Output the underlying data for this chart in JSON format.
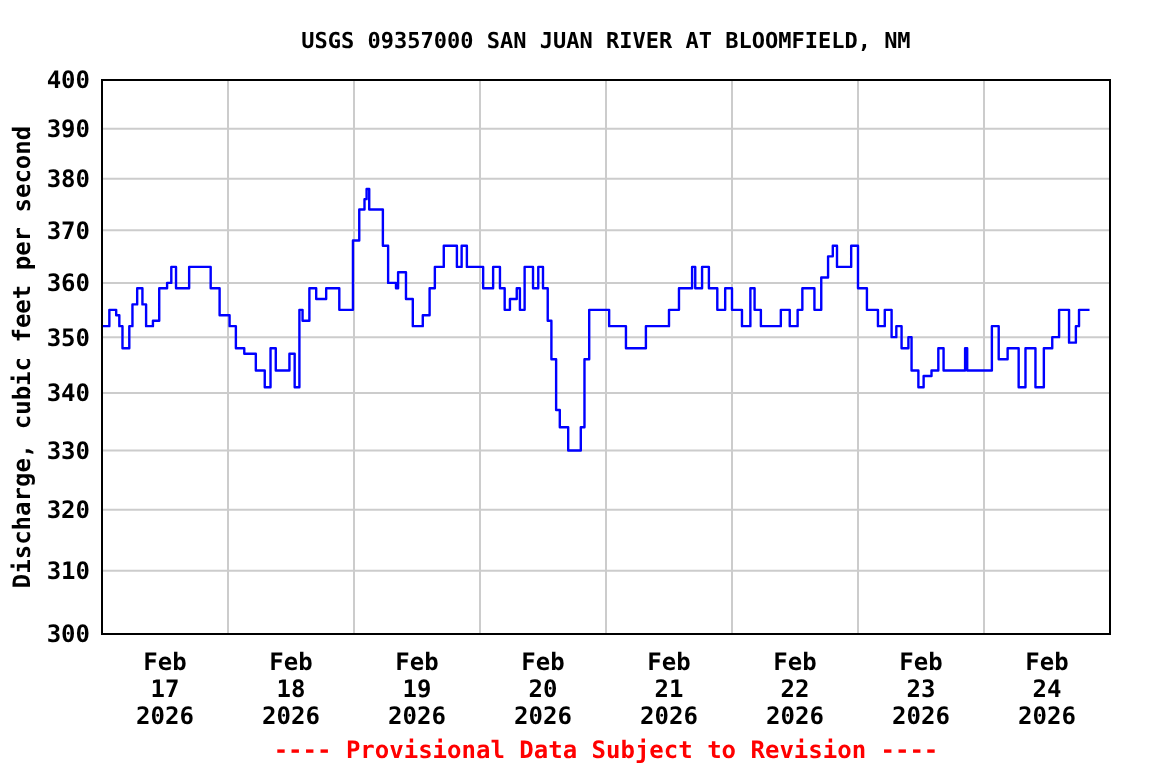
{
  "chart_data": {
    "type": "step",
    "title": "USGS 09357000 SAN JUAN RIVER AT BLOOMFIELD, NM",
    "ylabel": "Discharge, cubic feet per second",
    "annotations": [
      "---- Provisional Data Subject to Revision ----"
    ],
    "log": "y",
    "grid": true,
    "line_style": "solid",
    "marker": "none",
    "xlim": [
      "2026-02-17T00:00",
      "2026-02-25T00:00"
    ],
    "xticks": [
      {
        "value": "2026-02-17T12:00",
        "label": "Feb\n17\n2026"
      },
      {
        "value": "2026-02-18T00:00",
        "label": null
      },
      {
        "value": "2026-02-18T12:00",
        "label": "Feb\n18\n2026"
      },
      {
        "value": "2026-02-19T00:00",
        "label": null
      },
      {
        "value": "2026-02-19T12:00",
        "label": "Feb\n19\n2026"
      },
      {
        "value": "2026-02-20T00:00",
        "label": null
      },
      {
        "value": "2026-02-20T12:00",
        "label": "Feb\n20\n2026"
      },
      {
        "value": "2026-02-21T00:00",
        "label": null
      },
      {
        "value": "2026-02-21T12:00",
        "label": "Feb\n21\n2026"
      },
      {
        "value": "2026-02-22T00:00",
        "label": null
      },
      {
        "value": "2026-02-22T12:00",
        "label": "Feb\n22\n2026"
      },
      {
        "value": "2026-02-23T00:00",
        "label": null
      },
      {
        "value": "2026-02-23T12:00",
        "label": "Feb\n23\n2026"
      },
      {
        "value": "2026-02-24T00:00",
        "label": null
      },
      {
        "value": "2026-02-24T12:00",
        "label": "Feb\n24\n2026"
      }
    ],
    "ylim": [
      300,
      400
    ],
    "yticks": [
      300,
      310,
      320,
      330,
      340,
      350,
      360,
      370,
      380,
      390,
      400
    ],
    "series": [
      {
        "color": "#0000ff",
        "x": [
          "2026-02-17T00:06",
          "2026-02-17T01:24",
          "2026-02-17T02:42",
          "2026-02-17T03:18",
          "2026-02-17T03:54",
          "2026-02-17T05:12",
          "2026-02-17T05:48",
          "2026-02-17T06:42",
          "2026-02-17T07:42",
          "2026-02-17T08:24",
          "2026-02-17T09:42",
          "2026-02-17T10:54",
          "2026-02-17T12:24",
          "2026-02-17T13:12",
          "2026-02-17T14:06",
          "2026-02-17T16:36",
          "2026-02-17T19:48",
          "2026-02-17T20:42",
          "2026-02-17T22:24",
          "2026-02-18T00:18",
          "2026-02-18T01:30",
          "2026-02-18T03:06",
          "2026-02-18T05:18",
          "2026-02-18T07:00",
          "2026-02-18T08:06",
          "2026-02-18T09:06",
          "2026-02-18T11:42",
          "2026-02-18T12:42",
          "2026-02-18T13:36",
          "2026-02-18T14:12",
          "2026-02-18T15:30",
          "2026-02-18T16:48",
          "2026-02-18T18:42",
          "2026-02-18T20:36",
          "2026-02-18T21:12",
          "2026-02-18T22:54",
          "2026-02-18T23:48",
          "2026-02-19T01:00",
          "2026-02-19T02:00",
          "2026-02-19T02:24",
          "2026-02-19T02:54",
          "2026-02-19T04:48",
          "2026-02-19T05:30",
          "2026-02-19T06:30",
          "2026-02-19T08:00",
          "2026-02-19T08:24",
          "2026-02-19T09:54",
          "2026-02-19T11:12",
          "2026-02-19T13:06",
          "2026-02-19T14:24",
          "2026-02-19T15:24",
          "2026-02-19T17:06",
          "2026-02-19T19:00",
          "2026-02-19T19:36",
          "2026-02-19T20:30",
          "2026-02-19T21:30",
          "2026-02-20T00:36",
          "2026-02-20T02:30",
          "2026-02-20T03:48",
          "2026-02-20T04:42",
          "2026-02-20T05:42",
          "2026-02-20T07:00",
          "2026-02-20T07:36",
          "2026-02-20T08:30",
          "2026-02-20T10:06",
          "2026-02-20T11:06",
          "2026-02-20T12:00",
          "2026-02-20T12:54",
          "2026-02-20T13:36",
          "2026-02-20T14:30",
          "2026-02-20T15:12",
          "2026-02-20T16:48",
          "2026-02-20T18:42",
          "2026-02-20T19:12",
          "2026-02-20T19:54",
          "2026-02-20T20:48",
          "2026-02-21T00:00",
          "2026-02-21T00:36",
          "2026-02-21T03:12",
          "2026-02-21T03:48",
          "2026-02-21T06:54",
          "2026-02-21T07:36",
          "2026-02-21T11:24",
          "2026-02-21T12:00",
          "2026-02-21T13:54",
          "2026-02-21T16:24",
          "2026-02-21T17:00",
          "2026-02-21T18:18",
          "2026-02-21T19:36",
          "2026-02-21T21:12",
          "2026-02-21T22:42",
          "2026-02-22T00:00",
          "2026-02-22T01:54",
          "2026-02-22T03:30",
          "2026-02-22T04:18",
          "2026-02-22T05:30",
          "2026-02-22T08:42",
          "2026-02-22T09:18",
          "2026-02-22T11:00",
          "2026-02-22T12:30",
          "2026-02-22T13:24",
          "2026-02-22T15:06",
          "2026-02-22T15:42",
          "2026-02-22T17:00",
          "2026-02-22T18:18",
          "2026-02-22T19:12",
          "2026-02-22T20:00",
          "2026-02-22T22:42",
          "2026-02-23T00:00",
          "2026-02-23T01:42",
          "2026-02-23T03:48",
          "2026-02-23T05:06",
          "2026-02-23T06:24",
          "2026-02-23T07:18",
          "2026-02-23T08:18",
          "2026-02-23T09:36",
          "2026-02-23T10:12",
          "2026-02-23T11:30",
          "2026-02-23T12:30",
          "2026-02-23T14:00",
          "2026-02-23T15:18",
          "2026-02-23T16:18",
          "2026-02-23T20:00",
          "2026-02-23T20:24",
          "2026-02-23T20:48",
          "2026-02-24T00:18",
          "2026-02-24T01:30",
          "2026-02-24T02:48",
          "2026-02-24T04:30",
          "2026-02-24T06:36",
          "2026-02-24T07:54",
          "2026-02-24T09:48",
          "2026-02-24T11:24",
          "2026-02-24T13:00",
          "2026-02-24T14:18",
          "2026-02-24T16:12",
          "2026-02-24T17:30",
          "2026-02-24T18:06",
          "2026-02-24T20:06"
        ],
        "values": [
          352,
          355,
          354,
          352,
          348,
          352,
          356,
          359,
          356,
          352,
          353,
          359,
          360,
          363,
          359,
          363,
          363,
          359,
          354,
          352,
          348,
          347,
          344,
          341,
          348,
          344,
          347,
          341,
          355,
          353,
          359,
          357,
          359,
          359,
          355,
          355,
          368,
          374,
          376,
          378,
          374,
          374,
          367,
          360,
          359,
          362,
          357,
          352,
          354,
          359,
          363,
          367,
          367,
          363,
          367,
          363,
          359,
          363,
          359,
          355,
          357,
          359,
          355,
          363,
          359,
          363,
          359,
          353,
          346,
          337,
          334,
          330,
          330,
          334,
          346,
          355,
          355,
          352,
          352,
          348,
          348,
          352,
          352,
          355,
          359,
          363,
          359,
          363,
          359,
          355,
          359,
          355,
          352,
          359,
          355,
          352,
          352,
          355,
          352,
          355,
          359,
          359,
          355,
          361,
          365,
          367,
          363,
          367,
          359,
          355,
          352,
          355,
          350,
          352,
          348,
          350,
          344,
          341,
          343,
          344,
          348,
          344,
          344,
          348,
          344,
          344,
          352,
          346,
          348,
          341,
          348,
          341,
          348,
          350,
          355,
          349,
          352,
          355,
          355
        ]
      }
    ]
  }
}
